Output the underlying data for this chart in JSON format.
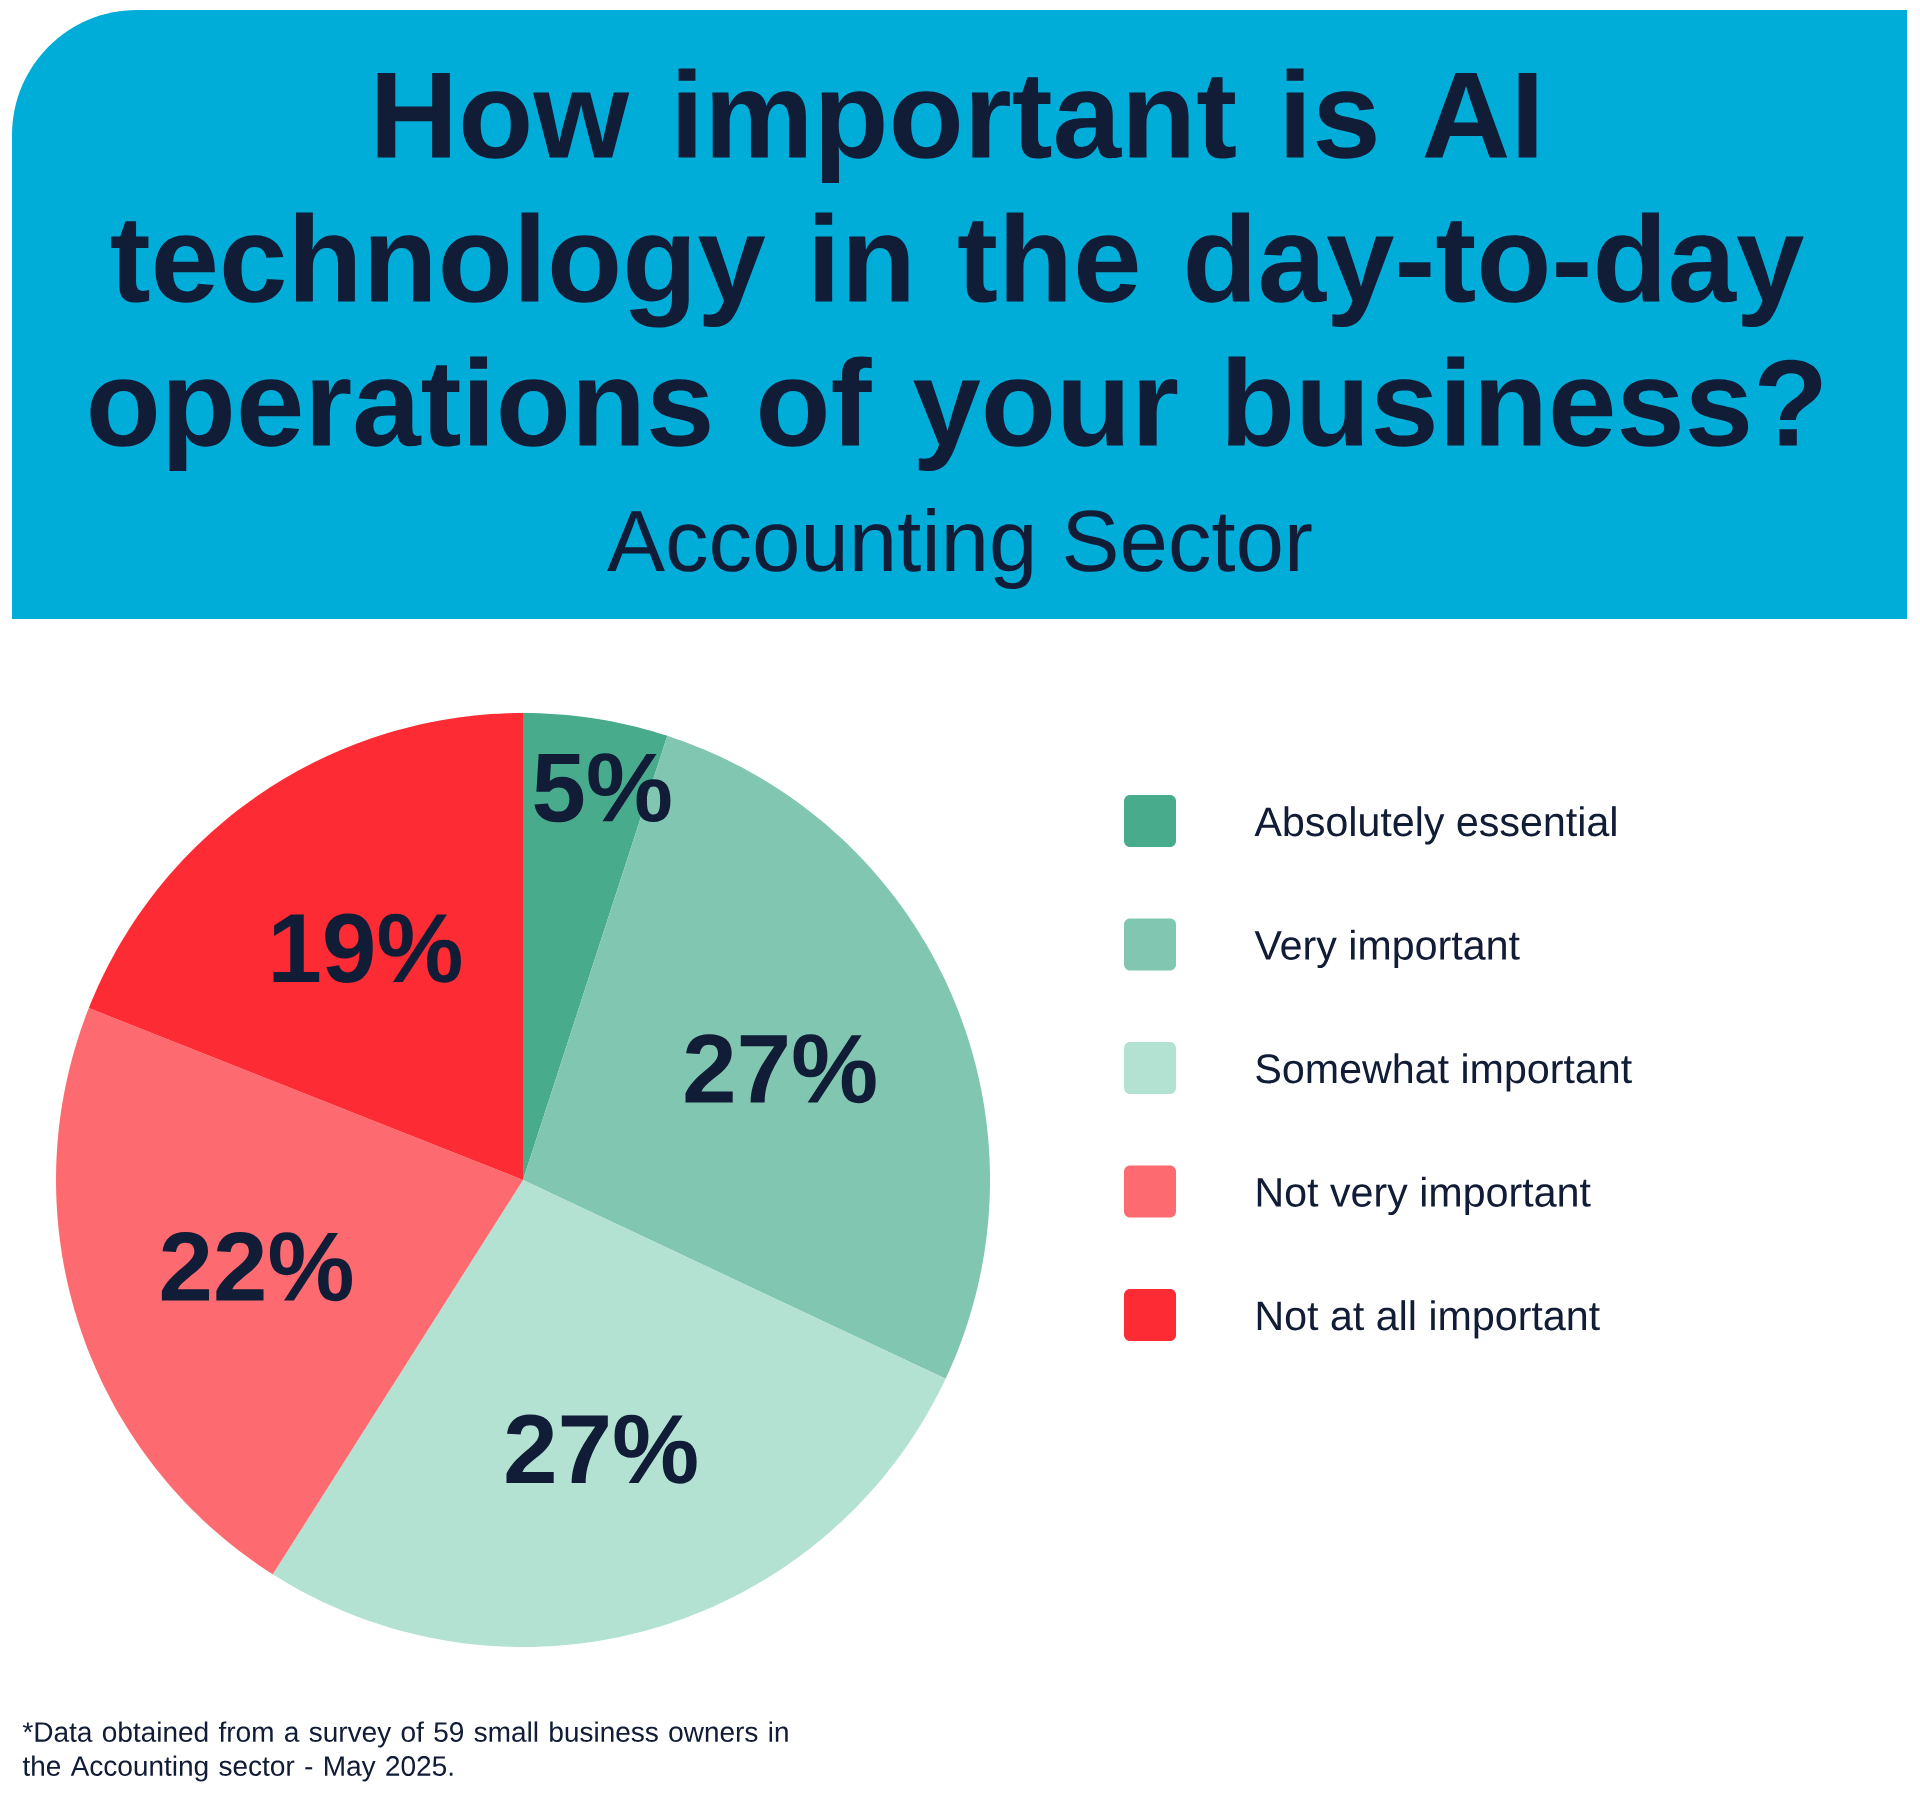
{
  "chart_data": {
    "type": "pie",
    "title": "How important is AI technology in the day-to-day operations of your business?",
    "subtitle": "Accounting Sector",
    "categories": [
      "Absolutely essential",
      "Very important",
      "Somewhat important",
      "Not very important",
      "Not at all important"
    ],
    "values": [
      5,
      27,
      27,
      22,
      19
    ],
    "colors": [
      "#47ab8c",
      "#80c6b0",
      "#b3e2d3",
      "#fd6b70",
      "#fd2b33"
    ],
    "value_labels": [
      "5%",
      "27%",
      "27%",
      "22%",
      "19%"
    ],
    "legend": "right",
    "annotations": [
      "*Data obtained from a survey of 59 small business owners in the Accounting sector - May 2025."
    ]
  }
}
